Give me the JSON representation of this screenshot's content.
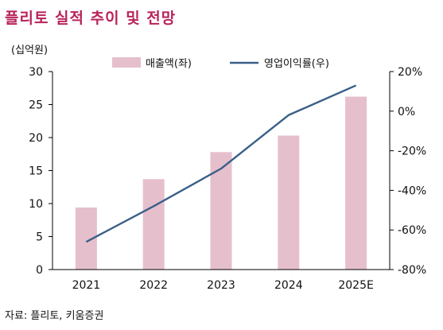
{
  "header": {
    "title": "플리토 실적 추이 및 전망",
    "unit": "(십억원)"
  },
  "footer": {
    "source": "자료: 플리토, 키움증권"
  },
  "colors": {
    "title": "#b8235a",
    "bar": "#e6bfcd",
    "line": "#3a5f88",
    "axis": "#000000"
  },
  "chart_data": {
    "type": "bar+line",
    "categories": [
      "2021",
      "2022",
      "2023",
      "2024",
      "2025E"
    ],
    "series": [
      {
        "name": "매출액(좌)",
        "type": "bar",
        "axis": "left",
        "values": [
          9.4,
          13.7,
          17.8,
          20.3,
          26.2
        ]
      },
      {
        "name": "영업이익률(우)",
        "type": "line",
        "axis": "right",
        "values": [
          -66,
          -48,
          -29,
          -2,
          13
        ]
      }
    ],
    "y_left": {
      "min": 0,
      "max": 30,
      "ticks": [
        "0",
        "5",
        "10",
        "15",
        "20",
        "25",
        "30"
      ]
    },
    "y_right": {
      "min": -80,
      "max": 20,
      "ticks": [
        "-80%",
        "-60%",
        "-40%",
        "-20%",
        "0%",
        "20%"
      ]
    },
    "legend_position": "top",
    "grid": false
  }
}
